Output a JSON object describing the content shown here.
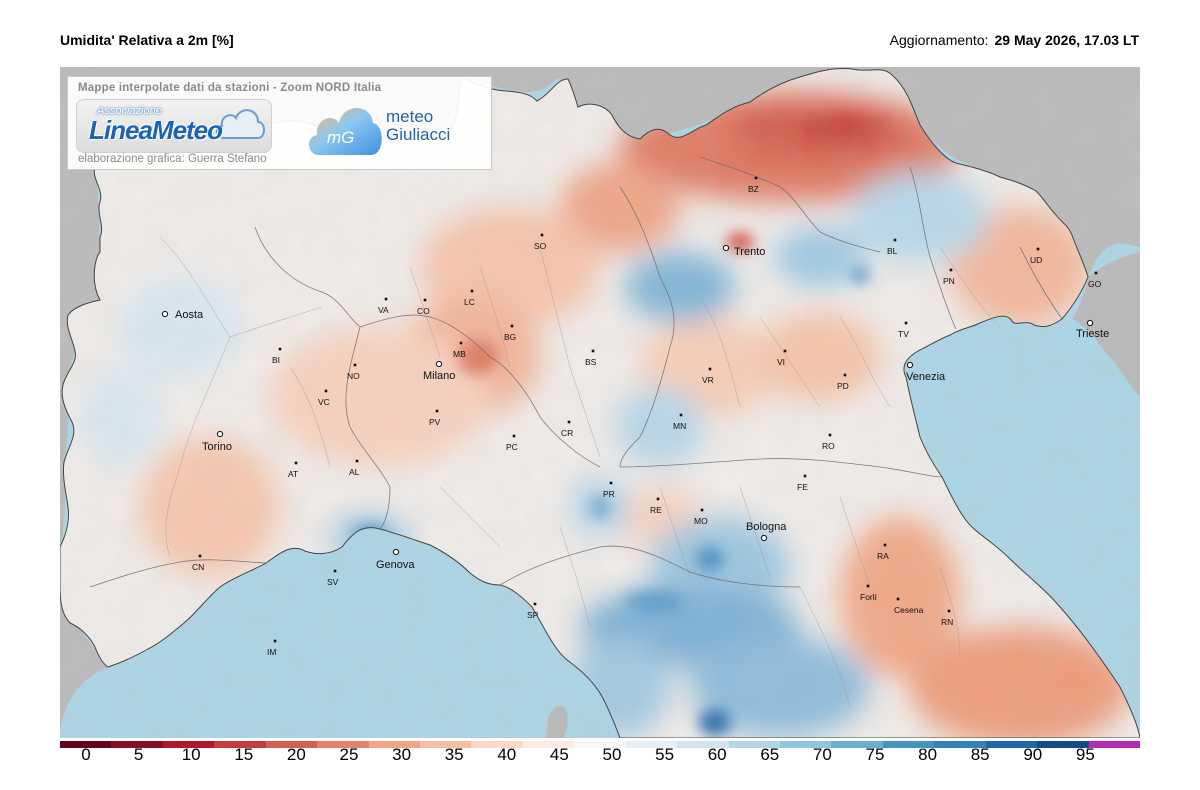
{
  "header": {
    "title": "Umidita' Relativa a 2m [%]",
    "update_label": "Aggiornamento:",
    "update_value": "29 May 2026, 17.03 LT"
  },
  "logos": {
    "caption": "Mappe interpolate dati da stazioni - Zoom NORD Italia",
    "linea_assoc": "Associazione",
    "linea_name": "LineaMeteo",
    "credit": "elaborazione grafica: Guerra Stefano",
    "mg_icon_text": "mG",
    "mg_line1": "meteo",
    "mg_line2": "Giuliacci"
  },
  "legend": {
    "labels": [
      "0",
      "5",
      "10",
      "15",
      "20",
      "25",
      "30",
      "35",
      "40",
      "45",
      "50",
      "55",
      "60",
      "65",
      "70",
      "75",
      "80",
      "85",
      "90",
      "95"
    ],
    "colors": [
      "#67001f",
      "#8b0e26",
      "#b2182b",
      "#c43c3c",
      "#d6604d",
      "#e58268",
      "#f4a582",
      "#f7bfa2",
      "#fbd9c6",
      "#fbebe2",
      "#f7f7f7",
      "#e5eff5",
      "#d1e5f0",
      "#b3d5e8",
      "#92c5de",
      "#6aaed3",
      "#4393c3",
      "#3580b9",
      "#2166ac",
      "#134a88",
      "#b32ab5"
    ]
  },
  "map": {
    "colors": {
      "sea": "#a9d6e8",
      "land_outside": "#b9b9b9",
      "border": "#555555"
    },
    "cities": [
      {
        "name": "Aosta",
        "size": "big"
      },
      {
        "name": "Torino",
        "size": "big"
      },
      {
        "name": "Milano",
        "size": "big"
      },
      {
        "name": "Trento",
        "size": "big"
      },
      {
        "name": "Venezia",
        "size": "big"
      },
      {
        "name": "Trieste",
        "size": "big"
      },
      {
        "name": "Genova",
        "size": "big"
      },
      {
        "name": "Bologna",
        "size": "big"
      },
      {
        "name": "BI",
        "size": "small"
      },
      {
        "name": "NO",
        "size": "small"
      },
      {
        "name": "VA",
        "size": "small"
      },
      {
        "name": "CO",
        "size": "small"
      },
      {
        "name": "LC",
        "size": "small"
      },
      {
        "name": "SO",
        "size": "small"
      },
      {
        "name": "MB",
        "size": "small"
      },
      {
        "name": "BG",
        "size": "small"
      },
      {
        "name": "BS",
        "size": "small"
      },
      {
        "name": "VC",
        "size": "small"
      },
      {
        "name": "PV",
        "size": "small"
      },
      {
        "name": "AT",
        "size": "small"
      },
      {
        "name": "AL",
        "size": "small"
      },
      {
        "name": "CN",
        "size": "small"
      },
      {
        "name": "SV",
        "size": "small"
      },
      {
        "name": "IM",
        "size": "small"
      },
      {
        "name": "PC",
        "size": "small"
      },
      {
        "name": "CR",
        "size": "small"
      },
      {
        "name": "MN",
        "size": "small"
      },
      {
        "name": "VR",
        "size": "small"
      },
      {
        "name": "BZ",
        "size": "small"
      },
      {
        "name": "BL",
        "size": "small"
      },
      {
        "name": "PN",
        "size": "small"
      },
      {
        "name": "UD",
        "size": "small"
      },
      {
        "name": "GO",
        "size": "small"
      },
      {
        "name": "TV",
        "size": "small"
      },
      {
        "name": "VI",
        "size": "small"
      },
      {
        "name": "PD",
        "size": "small"
      },
      {
        "name": "RO",
        "size": "small"
      },
      {
        "name": "FE",
        "size": "small"
      },
      {
        "name": "PR",
        "size": "small"
      },
      {
        "name": "RE",
        "size": "small"
      },
      {
        "name": "MO",
        "size": "small"
      },
      {
        "name": "SP",
        "size": "small"
      },
      {
        "name": "RA",
        "size": "small"
      },
      {
        "name": "Forlì",
        "size": "small"
      },
      {
        "name": "Cesena",
        "size": "small"
      },
      {
        "name": "RN",
        "size": "small"
      }
    ]
  }
}
